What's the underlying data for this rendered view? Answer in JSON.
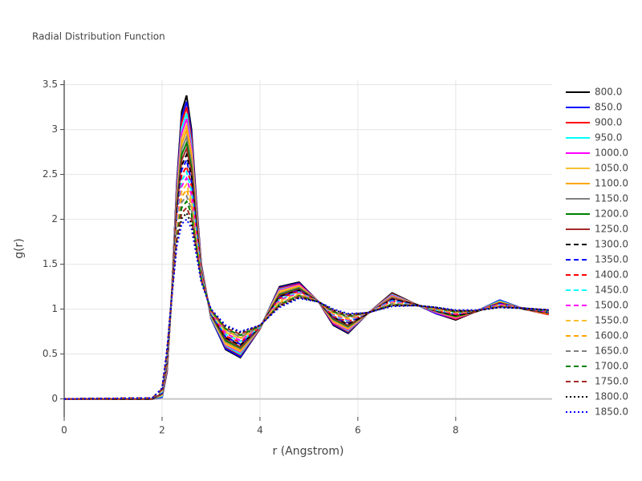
{
  "chart_data": {
    "type": "line",
    "title": "Radial Distribution Function",
    "x_label": "r (Angstrom)",
    "y_label": "g(r)",
    "x": [
      0,
      1.8,
      2.0,
      2.1,
      2.2,
      2.3,
      2.4,
      2.5,
      2.6,
      2.7,
      2.8,
      3.0,
      3.3,
      3.6,
      4.0,
      4.4,
      4.8,
      5.2,
      5.5,
      5.8,
      6.2,
      6.7,
      7.2,
      7.6,
      8.0,
      8.4,
      8.9,
      9.4,
      9.9
    ],
    "xlim": [
      0,
      9.97
    ],
    "ylim": [
      -0.2,
      3.55
    ],
    "xticks": [
      0,
      2,
      4,
      6,
      8
    ],
    "yticks": [
      0,
      0.5,
      1,
      1.5,
      2,
      2.5,
      3,
      3.5
    ],
    "grid": true,
    "legend": "right",
    "series": [
      {
        "name": "800.0",
        "color": "#000000",
        "dash": "solid",
        "values": [
          0,
          0,
          0.02,
          0.3,
          1.2,
          2.4,
          3.2,
          3.38,
          3.0,
          2.2,
          1.5,
          0.9,
          0.55,
          0.46,
          0.78,
          1.25,
          1.3,
          1.08,
          0.82,
          0.73,
          0.95,
          1.18,
          1.05,
          0.95,
          0.88,
          0.97,
          1.1,
          1.0,
          0.94
        ]
      },
      {
        "name": "850.0",
        "color": "#0000ff",
        "dash": "solid",
        "values": [
          0,
          0,
          0.02,
          0.31,
          1.2,
          2.37,
          3.14,
          3.31,
          2.95,
          2.17,
          1.49,
          0.9,
          0.56,
          0.47,
          0.78,
          1.24,
          1.29,
          1.08,
          0.83,
          0.74,
          0.95,
          1.17,
          1.05,
          0.95,
          0.89,
          0.97,
          1.1,
          1.0,
          0.94
        ]
      },
      {
        "name": "900.0",
        "color": "#ff0000",
        "dash": "solid",
        "values": [
          0,
          0,
          0.03,
          0.32,
          1.2,
          2.33,
          3.08,
          3.25,
          2.9,
          2.14,
          1.48,
          0.91,
          0.58,
          0.49,
          0.78,
          1.23,
          1.28,
          1.08,
          0.84,
          0.75,
          0.95,
          1.17,
          1.05,
          0.96,
          0.89,
          0.97,
          1.09,
          1.0,
          0.94
        ]
      },
      {
        "name": "950.0",
        "color": "#00ffff",
        "dash": "solid",
        "values": [
          0,
          0,
          0.03,
          0.34,
          1.19,
          2.3,
          3.02,
          3.18,
          2.84,
          2.11,
          1.47,
          0.91,
          0.59,
          0.5,
          0.79,
          1.22,
          1.27,
          1.08,
          0.85,
          0.76,
          0.95,
          1.16,
          1.05,
          0.96,
          0.9,
          0.97,
          1.09,
          1.0,
          0.95
        ]
      },
      {
        "name": "1000.0",
        "color": "#ff00ff",
        "dash": "solid",
        "values": [
          0,
          0,
          0.04,
          0.35,
          1.19,
          2.27,
          2.96,
          3.12,
          2.79,
          2.09,
          1.46,
          0.92,
          0.6,
          0.52,
          0.79,
          1.21,
          1.27,
          1.08,
          0.85,
          0.77,
          0.95,
          1.15,
          1.05,
          0.96,
          0.9,
          0.97,
          1.08,
          1.0,
          0.95
        ]
      },
      {
        "name": "1050.0",
        "color": "#f7c031",
        "dash": "solid",
        "values": [
          0,
          0,
          0.04,
          0.36,
          1.19,
          2.23,
          2.9,
          3.05,
          2.74,
          2.06,
          1.45,
          0.92,
          0.61,
          0.53,
          0.79,
          1.2,
          1.26,
          1.08,
          0.86,
          0.78,
          0.95,
          1.14,
          1.05,
          0.97,
          0.91,
          0.97,
          1.08,
          1.0,
          0.95
        ]
      },
      {
        "name": "1100.0",
        "color": "#ffa500",
        "dash": "solid",
        "values": [
          0,
          0,
          0.05,
          0.37,
          1.19,
          2.2,
          2.84,
          2.99,
          2.69,
          2.03,
          1.44,
          0.93,
          0.63,
          0.54,
          0.79,
          1.18,
          1.25,
          1.08,
          0.87,
          0.79,
          0.95,
          1.14,
          1.05,
          0.97,
          0.91,
          0.97,
          1.08,
          1.0,
          0.95
        ]
      },
      {
        "name": "1150.0",
        "color": "#808080",
        "dash": "solid",
        "values": [
          0,
          0,
          0.05,
          0.38,
          1.18,
          2.17,
          2.78,
          2.92,
          2.63,
          2.0,
          1.43,
          0.93,
          0.64,
          0.56,
          0.79,
          1.17,
          1.24,
          1.08,
          0.88,
          0.8,
          0.95,
          1.13,
          1.05,
          0.97,
          0.92,
          0.97,
          1.07,
          1.0,
          0.96
        ]
      },
      {
        "name": "1200.0",
        "color": "#008000",
        "dash": "solid",
        "values": [
          0,
          0,
          0.06,
          0.4,
          1.18,
          2.13,
          2.72,
          2.85,
          2.58,
          1.97,
          1.42,
          0.94,
          0.65,
          0.57,
          0.8,
          1.16,
          1.23,
          1.08,
          0.89,
          0.81,
          0.95,
          1.12,
          1.05,
          0.98,
          0.92,
          0.97,
          1.07,
          1.0,
          0.96
        ]
      },
      {
        "name": "1250.0",
        "color": "#a52a2a",
        "dash": "solid",
        "values": [
          0,
          0,
          0.06,
          0.41,
          1.18,
          2.1,
          2.66,
          2.79,
          2.53,
          1.94,
          1.41,
          0.94,
          0.67,
          0.58,
          0.8,
          1.15,
          1.22,
          1.08,
          0.9,
          0.82,
          0.95,
          1.12,
          1.05,
          0.98,
          0.93,
          0.97,
          1.07,
          1.0,
          0.96
        ]
      },
      {
        "name": "1300.0",
        "color": "#000000",
        "dash": "dash",
        "values": [
          0,
          0,
          0.07,
          0.42,
          1.18,
          2.07,
          2.6,
          2.72,
          2.48,
          1.91,
          1.4,
          0.95,
          0.68,
          0.6,
          0.8,
          1.14,
          1.21,
          1.08,
          0.91,
          0.83,
          0.95,
          1.11,
          1.05,
          0.98,
          0.93,
          0.97,
          1.06,
          1.0,
          0.96
        ]
      },
      {
        "name": "1350.0",
        "color": "#0000ff",
        "dash": "dash",
        "values": [
          0,
          0.01,
          0.07,
          0.43,
          1.17,
          2.03,
          2.55,
          2.66,
          2.42,
          1.89,
          1.4,
          0.95,
          0.69,
          0.61,
          0.8,
          1.13,
          1.21,
          1.08,
          0.91,
          0.85,
          0.96,
          1.1,
          1.04,
          0.99,
          0.94,
          0.98,
          1.06,
          1.01,
          0.97
        ]
      },
      {
        "name": "1400.0",
        "color": "#ff0000",
        "dash": "dash",
        "values": [
          0,
          0.01,
          0.08,
          0.44,
          1.17,
          2.0,
          2.49,
          2.59,
          2.37,
          1.86,
          1.39,
          0.96,
          0.7,
          0.63,
          0.8,
          1.12,
          1.2,
          1.08,
          0.92,
          0.86,
          0.96,
          1.09,
          1.04,
          0.99,
          0.94,
          0.98,
          1.05,
          1.01,
          0.97
        ]
      },
      {
        "name": "1450.0",
        "color": "#00ffff",
        "dash": "dash",
        "values": [
          0,
          0.01,
          0.08,
          0.45,
          1.17,
          1.97,
          2.43,
          2.53,
          2.32,
          1.83,
          1.38,
          0.96,
          0.72,
          0.64,
          0.8,
          1.11,
          1.19,
          1.08,
          0.93,
          0.87,
          0.96,
          1.09,
          1.04,
          0.99,
          0.95,
          0.98,
          1.05,
          1.01,
          0.97
        ]
      },
      {
        "name": "1500.0",
        "color": "#ff00ff",
        "dash": "dash",
        "values": [
          0,
          0.01,
          0.09,
          0.47,
          1.17,
          1.93,
          2.37,
          2.46,
          2.27,
          1.8,
          1.37,
          0.97,
          0.73,
          0.65,
          0.81,
          1.1,
          1.18,
          1.08,
          0.94,
          0.88,
          0.96,
          1.08,
          1.04,
          1.0,
          0.95,
          0.98,
          1.05,
          1.01,
          0.97
        ]
      },
      {
        "name": "1550.0",
        "color": "#f7c031",
        "dash": "dash",
        "values": [
          0,
          0.01,
          0.09,
          0.48,
          1.16,
          1.9,
          2.31,
          2.39,
          2.21,
          1.77,
          1.36,
          0.97,
          0.74,
          0.67,
          0.81,
          1.09,
          1.17,
          1.08,
          0.95,
          0.89,
          0.96,
          1.07,
          1.04,
          1.0,
          0.96,
          0.98,
          1.04,
          1.01,
          0.98
        ]
      },
      {
        "name": "1600.0",
        "color": "#ffa500",
        "dash": "dash",
        "values": [
          0,
          0.01,
          0.1,
          0.49,
          1.16,
          1.87,
          2.25,
          2.33,
          2.16,
          1.74,
          1.35,
          0.98,
          0.76,
          0.68,
          0.81,
          1.07,
          1.16,
          1.08,
          0.96,
          0.9,
          0.96,
          1.06,
          1.04,
          1.0,
          0.96,
          0.98,
          1.04,
          1.01,
          0.98
        ]
      },
      {
        "name": "1650.0",
        "color": "#808080",
        "dash": "dash",
        "values": [
          0,
          0.01,
          0.1,
          0.5,
          1.16,
          1.83,
          2.19,
          2.26,
          2.11,
          1.71,
          1.34,
          0.98,
          0.77,
          0.69,
          0.81,
          1.06,
          1.15,
          1.08,
          0.97,
          0.91,
          0.96,
          1.06,
          1.04,
          1.01,
          0.97,
          0.98,
          1.03,
          1.01,
          0.98
        ]
      },
      {
        "name": "1700.0",
        "color": "#008000",
        "dash": "dash",
        "values": [
          0,
          0.01,
          0.11,
          0.51,
          1.16,
          1.8,
          2.13,
          2.2,
          2.06,
          1.69,
          1.33,
          0.99,
          0.78,
          0.71,
          0.81,
          1.05,
          1.15,
          1.08,
          0.97,
          0.92,
          0.96,
          1.05,
          1.04,
          1.01,
          0.97,
          0.98,
          1.03,
          1.01,
          0.98
        ]
      },
      {
        "name": "1750.0",
        "color": "#a52a2a",
        "dash": "dash",
        "values": [
          0,
          0.01,
          0.11,
          0.53,
          1.15,
          1.77,
          2.07,
          2.13,
          2.0,
          1.66,
          1.32,
          0.99,
          0.79,
          0.72,
          0.82,
          1.04,
          1.14,
          1.08,
          0.98,
          0.93,
          0.96,
          1.04,
          1.04,
          1.01,
          0.98,
          0.98,
          1.03,
          1.01,
          0.99
        ]
      },
      {
        "name": "1800.0",
        "color": "#000000",
        "dash": "dot",
        "values": [
          0,
          0.01,
          0.12,
          0.54,
          1.15,
          1.73,
          2.01,
          2.07,
          1.95,
          1.63,
          1.31,
          1.0,
          0.81,
          0.74,
          0.82,
          1.03,
          1.13,
          1.08,
          0.99,
          0.94,
          0.96,
          1.04,
          1.04,
          1.02,
          0.98,
          0.98,
          1.02,
          1.01,
          0.99
        ]
      },
      {
        "name": "1850.0",
        "color": "#0000ff",
        "dash": "dot",
        "values": [
          0,
          0.01,
          0.12,
          0.55,
          1.15,
          1.7,
          1.95,
          2.0,
          1.9,
          1.6,
          1.3,
          1.0,
          0.82,
          0.75,
          0.82,
          1.02,
          1.12,
          1.08,
          1.0,
          0.95,
          0.96,
          1.03,
          1.04,
          1.02,
          0.99,
          0.99,
          1.02,
          1.01,
          0.99
        ]
      }
    ]
  }
}
